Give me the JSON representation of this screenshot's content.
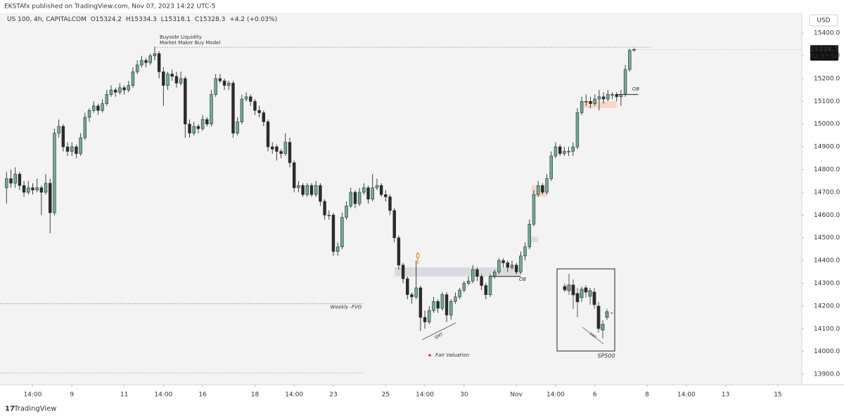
{
  "header": {
    "publisher": "EKSTAfx published on TradingView.com, Nov 07, 2023 14:22 UTC-5",
    "footer": "TradingView"
  },
  "chart_data": {
    "type": "candlestick",
    "title": "US 100, 4h, CAPITALCOM",
    "legend": [
      "O15324.2",
      "H15334.3",
      "L15318.1",
      "C15328.3",
      "+4.2 (+0.03%)"
    ],
    "currency": "USD",
    "up_color": "#6aae98",
    "down_color": "#2b2b2b",
    "grid": false,
    "xlim": [
      -1.5,
      182.5
    ],
    "xticks": [
      {
        "value": 6,
        "label": "14:00"
      },
      {
        "value": 15,
        "label": "9"
      },
      {
        "value": 27,
        "label": "11"
      },
      {
        "value": 36,
        "label": "14:00"
      },
      {
        "value": 45,
        "label": "16"
      },
      {
        "value": 57,
        "label": "18"
      },
      {
        "value": 66,
        "label": "14:00"
      },
      {
        "value": 75,
        "label": "23"
      },
      {
        "value": 87,
        "label": "25"
      },
      {
        "value": 96,
        "label": "14:00"
      },
      {
        "value": 105,
        "label": "30"
      },
      {
        "value": 117,
        "label": "Nov"
      },
      {
        "value": 126,
        "label": "14:00"
      },
      {
        "value": 135,
        "label": "6"
      },
      {
        "value": 147,
        "label": "8"
      },
      {
        "value": 156,
        "label": "14:00"
      },
      {
        "value": 165,
        "label": "13"
      },
      {
        "value": 177,
        "label": "15"
      }
    ],
    "ylim": [
      13854,
      15490
    ],
    "yticks": [
      {
        "value": 13900,
        "label": "13900.0"
      },
      {
        "value": 14000,
        "label": "14000.0"
      },
      {
        "value": 14100,
        "label": "14100.0"
      },
      {
        "value": 14200,
        "label": "14200.0"
      },
      {
        "value": 14300,
        "label": "14300.0"
      },
      {
        "value": 14400,
        "label": "14400.0"
      },
      {
        "value": 14500,
        "label": "14500.0"
      },
      {
        "value": 14600,
        "label": "14600.0"
      },
      {
        "value": 14700,
        "label": "14700.0"
      },
      {
        "value": 14800,
        "label": "14800.0"
      },
      {
        "value": 14900,
        "label": "14900.0"
      },
      {
        "value": 15000,
        "label": "15000.0"
      },
      {
        "value": 15100,
        "label": "15100.0"
      },
      {
        "value": 15200,
        "label": "15200.0"
      },
      {
        "value": 15300,
        "label": "15300.0"
      },
      {
        "value": 15400,
        "label": "15400.0"
      }
    ],
    "last_price": {
      "value": 15328.3,
      "label": "15328.3"
    },
    "countdown": "02:37:54",
    "ohlc": [
      [
        14720,
        14790,
        14650,
        14760
      ],
      [
        14760,
        14800,
        14720,
        14740
      ],
      [
        14740,
        14810,
        14720,
        14780
      ],
      [
        14780,
        14790,
        14710,
        14730
      ],
      [
        14730,
        14750,
        14680,
        14700
      ],
      [
        14700,
        14750,
        14690,
        14720
      ],
      [
        14720,
        14740,
        14690,
        14710
      ],
      [
        14710,
        14760,
        14700,
        14720
      ],
      [
        14720,
        14730,
        14600,
        14700
      ],
      [
        14700,
        14780,
        14690,
        14740
      ],
      [
        14740,
        14760,
        14520,
        14610
      ],
      [
        14610,
        14980,
        14600,
        14960
      ],
      [
        14960,
        15020,
        14940,
        14990
      ],
      [
        14990,
        15000,
        14880,
        14900
      ],
      [
        14900,
        14920,
        14860,
        14880
      ],
      [
        14880,
        14920,
        14860,
        14900
      ],
      [
        14900,
        14910,
        14850,
        14870
      ],
      [
        14870,
        14960,
        14860,
        14940
      ],
      [
        14940,
        15050,
        14930,
        15030
      ],
      [
        15030,
        15070,
        15010,
        15060
      ],
      [
        15060,
        15100,
        15050,
        15080
      ],
      [
        15080,
        15090,
        15040,
        15060
      ],
      [
        15060,
        15110,
        15050,
        15090
      ],
      [
        15090,
        15150,
        15080,
        15130
      ],
      [
        15130,
        15170,
        15120,
        15150
      ],
      [
        15150,
        15160,
        15120,
        15140
      ],
      [
        15140,
        15180,
        15130,
        15160
      ],
      [
        15160,
        15170,
        15130,
        15150
      ],
      [
        15150,
        15190,
        15140,
        15170
      ],
      [
        15170,
        15250,
        15160,
        15230
      ],
      [
        15230,
        15280,
        15220,
        15260
      ],
      [
        15260,
        15300,
        15250,
        15280
      ],
      [
        15280,
        15290,
        15250,
        15270
      ],
      [
        15270,
        15310,
        15260,
        15300
      ],
      [
        15300,
        15340,
        15280,
        15310
      ],
      [
        15310,
        15320,
        15200,
        15230
      ],
      [
        15230,
        15250,
        15080,
        15170
      ],
      [
        15170,
        15230,
        15150,
        15220
      ],
      [
        15220,
        15240,
        15190,
        15210
      ],
      [
        15210,
        15230,
        15160,
        15180
      ],
      [
        15180,
        15230,
        15170,
        15200
      ],
      [
        15200,
        15210,
        14940,
        15000
      ],
      [
        15000,
        15020,
        14940,
        14960
      ],
      [
        14960,
        15010,
        14950,
        14990
      ],
      [
        14990,
        15000,
        14960,
        14980
      ],
      [
        14980,
        15040,
        14970,
        15020
      ],
      [
        15020,
        15030,
        14990,
        15000
      ],
      [
        15000,
        15150,
        14990,
        15130
      ],
      [
        15130,
        15220,
        15120,
        15200
      ],
      [
        15200,
        15220,
        15180,
        15190
      ],
      [
        15190,
        15200,
        15150,
        15170
      ],
      [
        15170,
        15190,
        15150,
        15180
      ],
      [
        15180,
        15190,
        14940,
        14960
      ],
      [
        14960,
        15030,
        14950,
        15010
      ],
      [
        15010,
        15130,
        15000,
        15110
      ],
      [
        15110,
        15140,
        15100,
        15120
      ],
      [
        15120,
        15130,
        15080,
        15100
      ],
      [
        15100,
        15110,
        15040,
        15060
      ],
      [
        15060,
        15080,
        15030,
        15050
      ],
      [
        15050,
        15060,
        14990,
        15010
      ],
      [
        15010,
        15020,
        14880,
        14900
      ],
      [
        14900,
        14920,
        14870,
        14890
      ],
      [
        14900,
        14910,
        14840,
        14880
      ],
      [
        14880,
        14890,
        14850,
        14870
      ],
      [
        14870,
        14960,
        14860,
        14920
      ],
      [
        14920,
        14940,
        14810,
        14830
      ],
      [
        14830,
        14840,
        14700,
        14720
      ],
      [
        14720,
        14750,
        14700,
        14730
      ],
      [
        14730,
        14740,
        14680,
        14690
      ],
      [
        14690,
        14740,
        14680,
        14730
      ],
      [
        14730,
        14740,
        14680,
        14690
      ],
      [
        14690,
        14750,
        14680,
        14730
      ],
      [
        14730,
        14740,
        14640,
        14660
      ],
      [
        14660,
        14670,
        14580,
        14600
      ],
      [
        14600,
        14620,
        14580,
        14600
      ],
      [
        14600,
        14610,
        14420,
        14440
      ],
      [
        14440,
        14480,
        14420,
        14460
      ],
      [
        14460,
        14610,
        14450,
        14590
      ],
      [
        14590,
        14660,
        14580,
        14640
      ],
      [
        14640,
        14720,
        14630,
        14700
      ],
      [
        14700,
        14710,
        14630,
        14650
      ],
      [
        14650,
        14720,
        14640,
        14700
      ],
      [
        14700,
        14740,
        14690,
        14720
      ],
      [
        14720,
        14730,
        14650,
        14670
      ],
      [
        14670,
        14780,
        14660,
        14720
      ],
      [
        14720,
        14760,
        14710,
        14730
      ],
      [
        14730,
        14740,
        14680,
        14690
      ],
      [
        14690,
        14710,
        14660,
        14680
      ],
      [
        14680,
        14690,
        14600,
        14620
      ],
      [
        14620,
        14630,
        14480,
        14500
      ],
      [
        14500,
        14510,
        14360,
        14380
      ],
      [
        14380,
        14390,
        14300,
        14320
      ],
      [
        14320,
        14330,
        14230,
        14250
      ],
      [
        14250,
        14260,
        14210,
        14240
      ],
      [
        14240,
        14400,
        14230,
        14280
      ],
      [
        14280,
        14290,
        14090,
        14150
      ],
      [
        14150,
        14180,
        14100,
        14130
      ],
      [
        14130,
        14200,
        14120,
        14180
      ],
      [
        14180,
        14240,
        14170,
        14220
      ],
      [
        14220,
        14230,
        14170,
        14190
      ],
      [
        14190,
        14260,
        14180,
        14250
      ],
      [
        14250,
        14260,
        14130,
        14160
      ],
      [
        14160,
        14230,
        14140,
        14220
      ],
      [
        14220,
        14260,
        14210,
        14240
      ],
      [
        14240,
        14280,
        14230,
        14270
      ],
      [
        14270,
        14310,
        14260,
        14300
      ],
      [
        14300,
        14330,
        14290,
        14310
      ],
      [
        14310,
        14380,
        14300,
        14360
      ],
      [
        14360,
        14370,
        14310,
        14330
      ],
      [
        14330,
        14340,
        14270,
        14290
      ],
      [
        14290,
        14300,
        14230,
        14250
      ],
      [
        14250,
        14340,
        14240,
        14330
      ],
      [
        14330,
        14360,
        14320,
        14350
      ],
      [
        14350,
        14410,
        14340,
        14400
      ],
      [
        14400,
        14410,
        14370,
        14390
      ],
      [
        14390,
        14400,
        14350,
        14370
      ],
      [
        14370,
        14400,
        14360,
        14380
      ],
      [
        14380,
        14390,
        14340,
        14350
      ],
      [
        14350,
        14440,
        14340,
        14420
      ],
      [
        14420,
        14480,
        14400,
        14460
      ],
      [
        14460,
        14580,
        14450,
        14560
      ],
      [
        14560,
        14710,
        14550,
        14690
      ],
      [
        14690,
        14750,
        14680,
        14730
      ],
      [
        14730,
        14740,
        14690,
        14700
      ],
      [
        14700,
        14780,
        14690,
        14760
      ],
      [
        14760,
        14880,
        14750,
        14860
      ],
      [
        14860,
        14920,
        14850,
        14900
      ],
      [
        14900,
        14910,
        14860,
        14870
      ],
      [
        14870,
        14900,
        14860,
        14880
      ],
      [
        14880,
        14900,
        14860,
        14880
      ],
      [
        14880,
        14920,
        14860,
        14900
      ],
      [
        14900,
        15070,
        14890,
        15050
      ],
      [
        15050,
        15120,
        15040,
        15100
      ],
      [
        15100,
        15130,
        15080,
        15100
      ],
      [
        15100,
        15120,
        15070,
        15090
      ],
      [
        15090,
        15130,
        15080,
        15110
      ],
      [
        15110,
        15150,
        15060,
        15120
      ],
      [
        15120,
        15140,
        15090,
        15110
      ],
      [
        15110,
        15150,
        15100,
        15130
      ],
      [
        15130,
        15140,
        15110,
        15130
      ],
      [
        15130,
        15140,
        15100,
        15120
      ],
      [
        15120,
        15150,
        15080,
        15130
      ],
      [
        15130,
        15260,
        15120,
        15240
      ],
      [
        15240,
        15330,
        15230,
        15324.2
      ],
      [
        15324.2,
        15334.3,
        15318.1,
        15328.3
      ]
    ],
    "levels": [
      {
        "value": 15338,
        "x": [
          34,
          148
        ],
        "labels": [
          "Buyside Liquidity",
          "Market Maker Buy Model"
        ]
      },
      {
        "value": 14210,
        "x": [
          -1.5,
          82
        ],
        "labels": [
          "Weekly -FVG"
        ]
      },
      {
        "value": 13905,
        "x": [
          -1.5,
          82
        ]
      }
    ],
    "zones": [
      {
        "from": 14330,
        "to": 14370,
        "x": [
          89,
          118
        ],
        "color": "#d9dbe0"
      },
      {
        "from": 14480,
        "to": 14505,
        "x": [
          120,
          122
        ],
        "color": "#dcdee2"
      },
      {
        "from": 14680,
        "to": 14730,
        "x": [
          120.5,
          124
        ],
        "color": "#f5d9c8"
      },
      {
        "from": 15070,
        "to": 15100,
        "x": [
          132,
          140
        ],
        "color": "#f5d9c8"
      }
    ],
    "notes": [
      "OB",
      "OB",
      "SMT",
      "SMT",
      "Fair Valuation",
      "SP500"
    ]
  }
}
